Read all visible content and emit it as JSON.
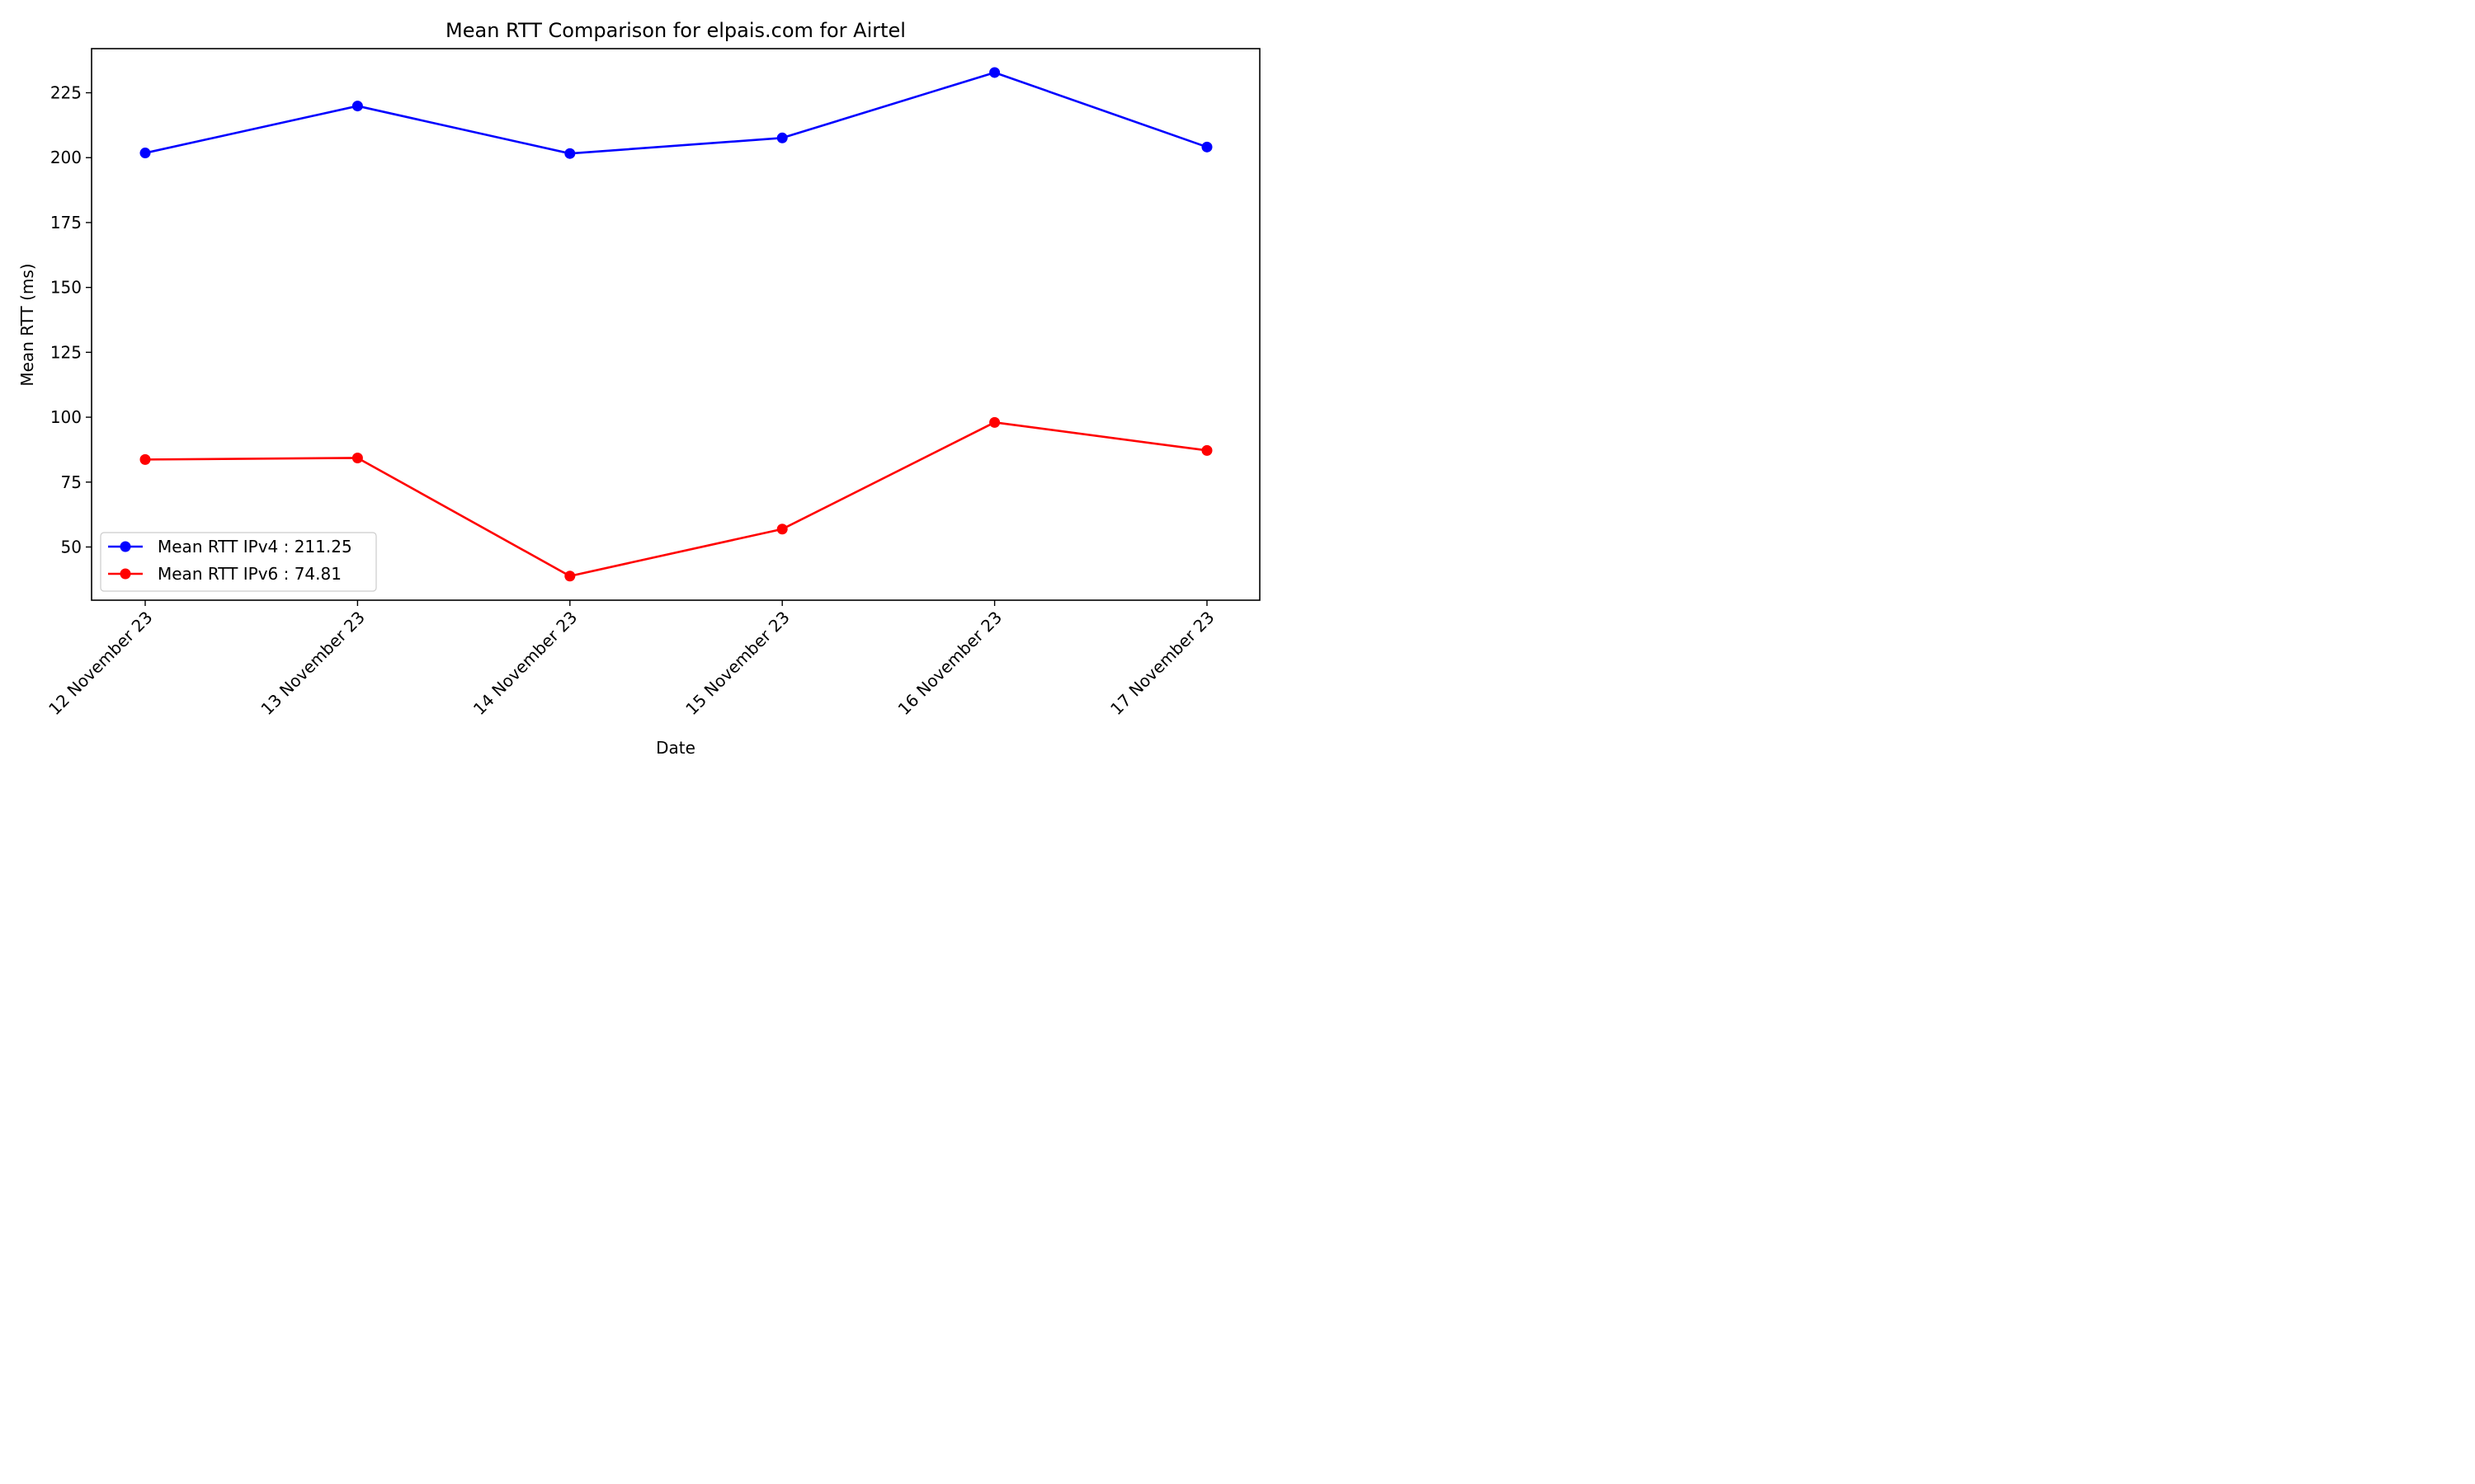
{
  "chart_data": {
    "type": "line",
    "title": "Mean RTT Comparison for elpais.com for Airtel",
    "xlabel": "Date",
    "ylabel": "Mean RTT (ms)",
    "categories": [
      "12 November 23",
      "13 November 23",
      "14 November 23",
      "15 November 23",
      "16 November 23",
      "17 November 23"
    ],
    "ylim": [
      29.5,
      242
    ],
    "yticks": [
      50,
      75,
      100,
      125,
      150,
      175,
      200,
      225
    ],
    "legend_position": "lower-left",
    "grid": false,
    "series": [
      {
        "name": "Mean RTT IPv4 : 211.25",
        "color": "#0000ff",
        "values": [
          201.8,
          219.9,
          201.6,
          207.6,
          232.8,
          204.1
        ]
      },
      {
        "name": "Mean RTT IPv6 : 74.81",
        "color": "#ff0000",
        "values": [
          83.7,
          84.3,
          38.8,
          56.9,
          98.0,
          87.2
        ]
      }
    ]
  }
}
